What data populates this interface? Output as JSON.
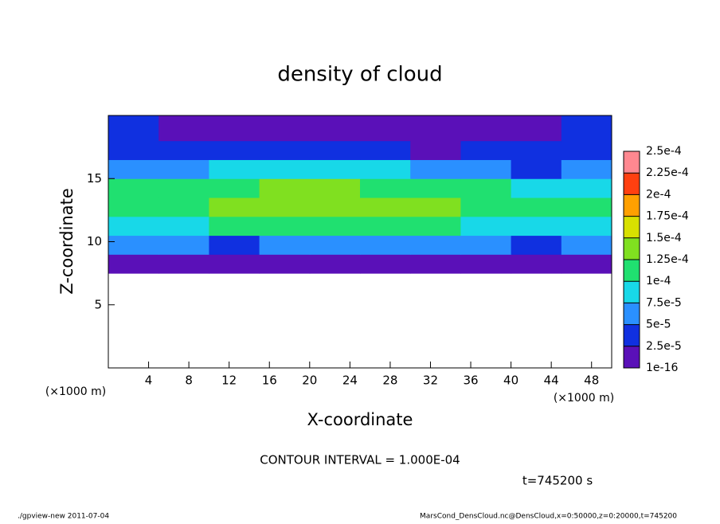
{
  "chart_data": {
    "type": "heatmap",
    "title": "density of cloud",
    "x_label": "X-coordinate",
    "y_label": "Z-coordinate",
    "x_unit": "(×1000 m)",
    "xlim": [
      0,
      50
    ],
    "ylim": [
      0,
      20
    ],
    "xticks": [
      4,
      8,
      12,
      16,
      20,
      24,
      28,
      32,
      36,
      40,
      44,
      48
    ],
    "yticks": [
      5,
      10,
      15
    ],
    "x_edges": [
      0,
      5,
      10,
      15,
      20,
      25,
      30,
      35,
      40,
      45,
      50
    ],
    "z_edges": [
      7.5,
      9,
      10.5,
      12,
      13.5,
      15,
      16.5,
      18,
      20
    ],
    "values": [
      [
        2e-05,
        2e-05,
        1.5e-05,
        2e-05,
        2e-05,
        2e-05,
        2e-05,
        2e-05,
        1.5e-05,
        2e-05
      ],
      [
        5e-05,
        5e-05,
        4.5e-05,
        5e-05,
        5e-05,
        5e-05,
        5e-05,
        5e-05,
        4.5e-05,
        5e-05
      ],
      [
        9e-05,
        9.5e-05,
        0.0001,
        0.000105,
        0.000105,
        0.000105,
        0.0001,
        9.5e-05,
        9.5e-05,
        9e-05
      ],
      [
        0.00011,
        0.00012,
        0.00013,
        0.00014,
        0.000145,
        0.00014,
        0.00013,
        0.000115,
        0.00011,
        0.000105
      ],
      [
        0.0001,
        0.00011,
        0.00012,
        0.000125,
        0.000125,
        0.00012,
        0.00011,
        0.0001,
        9.5e-05,
        9e-05
      ],
      [
        6e-05,
        5e-05,
        9e-05,
        9e-05,
        8.5e-05,
        8e-05,
        6.5e-05,
        5e-05,
        4e-05,
        6e-05
      ],
      [
        3.5e-05,
        3e-05,
        3e-05,
        3e-05,
        2.8e-05,
        2.5e-05,
        2.3e-05,
        2.5e-05,
        3e-05,
        3.5e-05
      ],
      [
        2.5e-05,
        2e-05,
        2e-05,
        1.8e-05,
        1.5e-05,
        1.2e-05,
        1e-05,
        1.5e-05,
        2e-05,
        2.5e-05
      ]
    ],
    "levels": [
      {
        "value": 1e-16,
        "label": "1e-16"
      },
      {
        "value": 2.5e-05,
        "label": "2.5e-5"
      },
      {
        "value": 5e-05,
        "label": "5e-5"
      },
      {
        "value": 7.5e-05,
        "label": "7.5e-5"
      },
      {
        "value": 0.0001,
        "label": "1e-4"
      },
      {
        "value": 0.000125,
        "label": "1.25e-4"
      },
      {
        "value": 0.00015,
        "label": "1.5e-4"
      },
      {
        "value": 0.000175,
        "label": "1.75e-4"
      },
      {
        "value": 0.0002,
        "label": "2e-4"
      },
      {
        "value": 0.000225,
        "label": "2.25e-4"
      },
      {
        "value": 0.00025,
        "label": "2.5e-4"
      }
    ],
    "colors": [
      "#5a10b8",
      "#1030e0",
      "#2a90ff",
      "#18d8e8",
      "#20e070",
      "#80e020",
      "#d8e000",
      "#ffa000",
      "#ff4010",
      "#ff8890"
    ],
    "contour_interval": "CONTOUR INTERVAL = 1.000E-04",
    "time": "t=745200 s",
    "footer_left": "./gpview-new   2011-07-04",
    "footer_right": "MarsCond_DensCloud.nc@DensCloud,x=0:50000,z=0:20000,t=745200"
  }
}
